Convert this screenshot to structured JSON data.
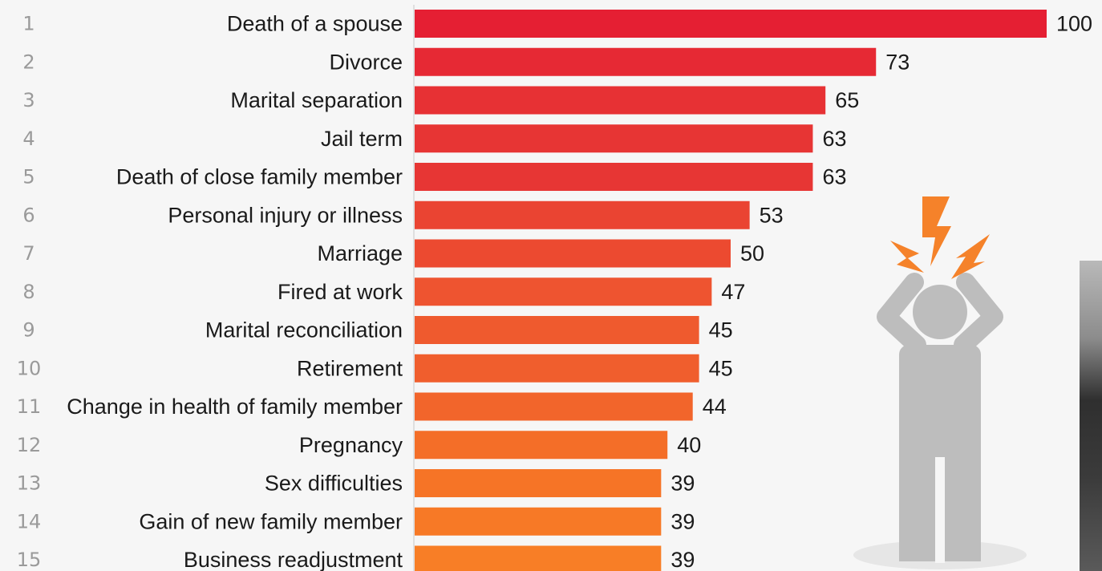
{
  "chart_data": {
    "type": "bar",
    "orientation": "horizontal",
    "ranks": [
      "1",
      "2",
      "3",
      "4",
      "5",
      "6",
      "7",
      "8",
      "9",
      "10",
      "11",
      "12",
      "13",
      "14",
      "15"
    ],
    "categories": [
      "Death of a spouse",
      "Divorce",
      "Marital separation",
      "Jail term",
      "Death of close family member",
      "Personal injury or illness",
      "Marriage",
      "Fired at work",
      "Marital reconciliation",
      "Retirement",
      "Change in health of family member",
      "Pregnancy",
      "Sex difficulties",
      "Gain of new family member",
      "Business readjustment"
    ],
    "values": [
      100,
      73,
      65,
      63,
      63,
      53,
      50,
      47,
      45,
      45,
      44,
      40,
      39,
      39,
      39
    ],
    "xlim": [
      0,
      100
    ],
    "grid": false,
    "legend": "none",
    "colors": [
      "#e51f33",
      "#e62934",
      "#e73134",
      "#e73534",
      "#e73634",
      "#ea4432",
      "#ec4a30",
      "#ee5430",
      "#ef5a2e",
      "#f05e2d",
      "#f2652b",
      "#f46e28",
      "#f67426",
      "#f77926",
      "#f87e26"
    ]
  },
  "illustration": {
    "icon": "stressed-person-icon",
    "figure_color": "#bdbdbd",
    "bolt_color": "#f5822a"
  }
}
